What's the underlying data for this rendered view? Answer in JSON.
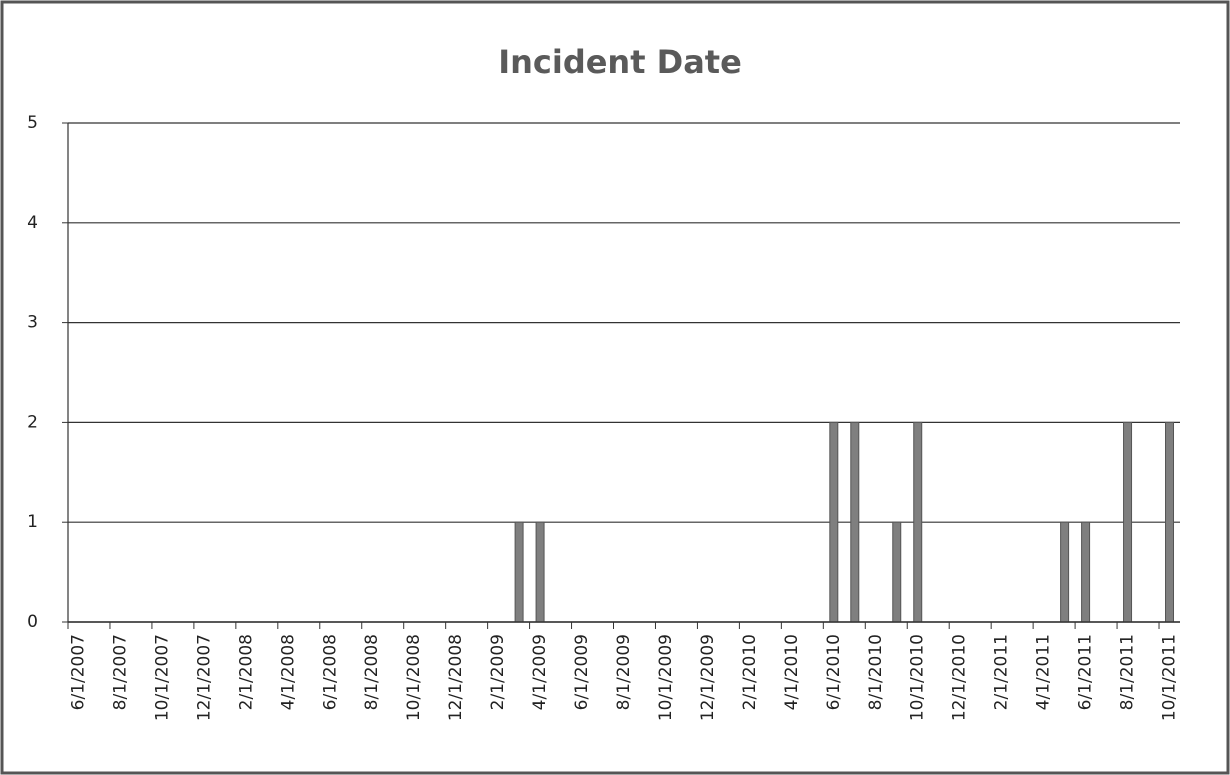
{
  "chart_data": {
    "type": "bar",
    "title": "Incident Date",
    "x": [
      "3/1/2009",
      "4/1/2009",
      "6/1/2010",
      "7/1/2010",
      "9/1/2010",
      "10/1/2010",
      "5/1/2011",
      "6/1/2011",
      "8/1/2011",
      "10/1/2011"
    ],
    "values": [
      1,
      1,
      2,
      2,
      1,
      2,
      1,
      1,
      2,
      2
    ],
    "color": "#7f7f7f",
    "xlim": [
      "6/1/2007",
      "11/1/2011"
    ],
    "xticks": [
      "6/1/2007",
      "8/1/2007",
      "10/1/2007",
      "12/1/2007",
      "2/1/2008",
      "4/1/2008",
      "6/1/2008",
      "8/1/2008",
      "10/1/2008",
      "12/1/2008",
      "2/1/2009",
      "4/1/2009",
      "6/1/2009",
      "8/1/2009",
      "10/1/2009",
      "12/1/2009",
      "2/1/2010",
      "4/1/2010",
      "6/1/2010",
      "8/1/2010",
      "10/1/2010",
      "12/1/2010",
      "2/1/2011",
      "4/1/2011",
      "6/1/2011",
      "8/1/2011",
      "10/1/2011"
    ],
    "ylim": [
      0,
      5
    ],
    "yticks": [
      0,
      1,
      2,
      3,
      4,
      5
    ],
    "grid": true
  }
}
